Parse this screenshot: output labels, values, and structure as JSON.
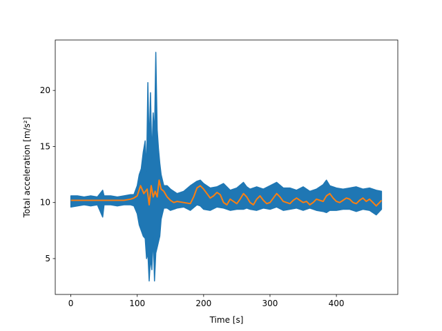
{
  "chart_data": {
    "type": "line",
    "title": "",
    "xlabel": "Time [s]",
    "ylabel": "Total acceleration [m/s²]",
    "xlim": [
      -23.5,
      492.5
    ],
    "ylim": [
      1.8,
      24.5
    ],
    "xticks": [
      0,
      100,
      200,
      300,
      400
    ],
    "yticks": [
      5,
      10,
      15,
      20
    ],
    "grid": false,
    "legend": "none",
    "series": [
      {
        "color": "#1f77b4",
        "style": "raw signal drawn as min/max envelope",
        "x": [
          0,
          10,
          20,
          30,
          40,
          48,
          50,
          60,
          70,
          80,
          90,
          95,
          100,
          103,
          106,
          109,
          112,
          114,
          116,
          118,
          120,
          122,
          124,
          126,
          128,
          130,
          132,
          134,
          136,
          138,
          140,
          145,
          150,
          160,
          170,
          180,
          190,
          195,
          200,
          210,
          220,
          230,
          240,
          250,
          260,
          265,
          270,
          280,
          290,
          300,
          310,
          320,
          330,
          340,
          350,
          360,
          370,
          380,
          385,
          390,
          400,
          410,
          420,
          430,
          440,
          450,
          460,
          468
        ],
        "y_min": [
          9.6,
          9.7,
          9.8,
          9.7,
          9.8,
          8.7,
          9.8,
          9.8,
          9.7,
          9.8,
          9.8,
          9.7,
          9.0,
          8.0,
          7.5,
          7.0,
          6.8,
          5.0,
          5.5,
          3.0,
          5.0,
          4.0,
          7.0,
          3.0,
          5.5,
          6.0,
          6.5,
          7.0,
          8.5,
          9.0,
          9.5,
          9.5,
          9.3,
          9.5,
          9.6,
          9.3,
          9.8,
          9.7,
          9.4,
          9.3,
          9.6,
          9.5,
          9.3,
          9.4,
          9.4,
          9.5,
          9.4,
          9.3,
          9.5,
          9.4,
          9.6,
          9.3,
          9.4,
          9.5,
          9.3,
          9.5,
          9.3,
          9.2,
          9.1,
          9.3,
          9.3,
          9.4,
          9.4,
          9.2,
          9.4,
          9.3,
          8.9,
          9.4
        ],
        "y_max": [
          10.6,
          10.6,
          10.5,
          10.6,
          10.5,
          11.1,
          10.6,
          10.6,
          10.5,
          10.6,
          10.7,
          10.7,
          11.5,
          12.5,
          13.0,
          14.5,
          15.5,
          12.8,
          20.7,
          15.0,
          19.8,
          14.0,
          18.0,
          16.0,
          23.4,
          16.5,
          14.8,
          13.5,
          12.5,
          12.0,
          11.5,
          11.5,
          11.2,
          10.8,
          11.0,
          11.5,
          11.9,
          12.0,
          11.7,
          11.3,
          11.4,
          11.7,
          11.1,
          11.3,
          11.8,
          11.4,
          11.2,
          11.4,
          11.2,
          11.5,
          11.8,
          11.3,
          11.3,
          11.1,
          11.4,
          11.0,
          11.2,
          11.6,
          12.0,
          11.5,
          11.3,
          11.2,
          11.3,
          11.4,
          11.2,
          11.3,
          11.1,
          11.0
        ]
      },
      {
        "color": "#ff7f0e",
        "style": "smoothed line",
        "x": [
          0,
          20,
          40,
          60,
          80,
          90,
          95,
          100,
          105,
          110,
          115,
          118,
          121,
          124,
          127,
          130,
          133,
          136,
          140,
          145,
          150,
          155,
          160,
          170,
          180,
          185,
          190,
          195,
          200,
          205,
          210,
          215,
          220,
          225,
          230,
          235,
          240,
          245,
          250,
          255,
          260,
          265,
          270,
          275,
          280,
          285,
          290,
          295,
          300,
          305,
          310,
          315,
          320,
          325,
          330,
          335,
          340,
          345,
          350,
          355,
          360,
          365,
          370,
          375,
          380,
          385,
          390,
          395,
          400,
          405,
          410,
          415,
          420,
          425,
          430,
          435,
          440,
          445,
          450,
          455,
          460,
          465,
          468
        ],
        "y": [
          10.2,
          10.2,
          10.2,
          10.2,
          10.2,
          10.3,
          10.4,
          10.6,
          11.5,
          10.8,
          11.2,
          9.8,
          11.5,
          10.5,
          11.0,
          10.5,
          12.0,
          11.2,
          11.0,
          10.5,
          10.2,
          10.0,
          10.1,
          10.0,
          9.9,
          10.5,
          11.3,
          11.5,
          11.2,
          10.8,
          10.4,
          10.6,
          10.9,
          10.7,
          10.0,
          9.8,
          10.3,
          10.1,
          9.9,
          10.3,
          10.8,
          10.5,
          10.0,
          9.8,
          10.3,
          10.6,
          10.2,
          9.9,
          10.0,
          10.4,
          10.8,
          10.5,
          10.1,
          10.0,
          9.9,
          10.2,
          10.4,
          10.2,
          10.0,
          10.1,
          9.8,
          10.0,
          10.3,
          10.2,
          10.1,
          10.6,
          10.8,
          10.4,
          10.1,
          10.0,
          10.2,
          10.4,
          10.3,
          10.0,
          9.9,
          10.2,
          10.4,
          10.1,
          10.3,
          10.0,
          9.7,
          10.0,
          10.2
        ]
      }
    ]
  }
}
